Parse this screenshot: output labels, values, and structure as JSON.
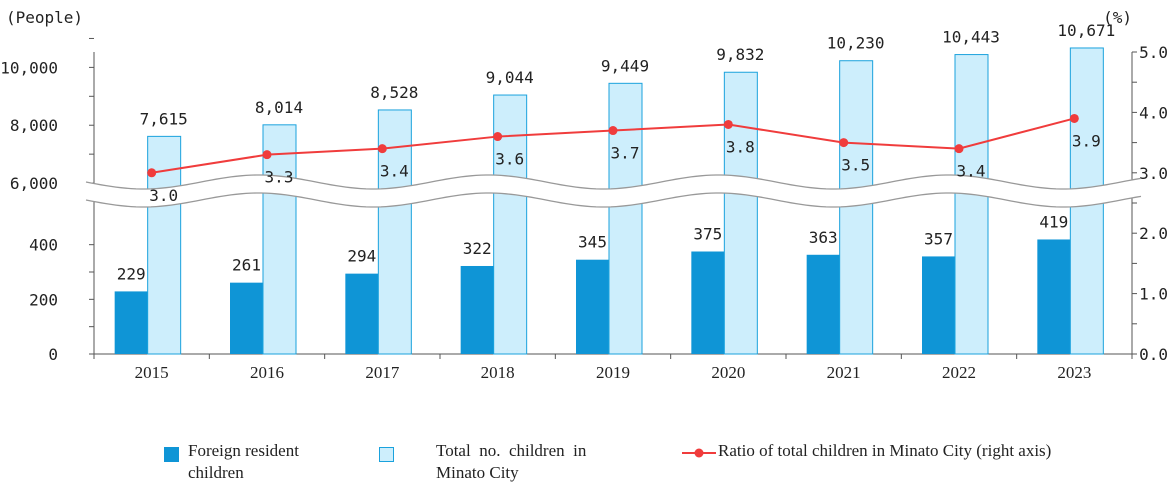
{
  "chart_data": {
    "type": "bar",
    "left_axis_unit": "(People)",
    "right_axis_unit": "(%)",
    "categories": [
      "2015",
      "2016",
      "2017",
      "2018",
      "2019",
      "2020",
      "2021",
      "2022",
      "2023"
    ],
    "left_axis_ticks_lower": [
      "0",
      "200",
      "400"
    ],
    "left_axis_ticks_upper": [
      "6,000",
      "8,000",
      "10,000"
    ],
    "right_axis_ticks": [
      "0.0",
      "1.0",
      "2.0",
      "3.0",
      "4.0",
      "5.0"
    ],
    "series": [
      {
        "name": "Foreign resident children",
        "type": "bar",
        "color": "#0f95d6",
        "values": [
          229,
          261,
          294,
          322,
          345,
          375,
          363,
          357,
          419
        ],
        "labels": [
          "229",
          "261",
          "294",
          "322",
          "345",
          "375",
          "363",
          "357",
          "419"
        ]
      },
      {
        "name": "Total no. children in Minato City",
        "type": "bar",
        "color": "#cdeefc",
        "values": [
          7615,
          8014,
          8528,
          9044,
          9449,
          9832,
          10230,
          10443,
          10671
        ],
        "labels": [
          "7,615",
          "8,014",
          "8,528",
          "9,044",
          "9,449",
          "9,832",
          "10,230",
          "10,443",
          "10,671"
        ]
      },
      {
        "name": "Ratio of total children in Minato City (right axis)",
        "type": "line",
        "color": "#f03c3c",
        "values": [
          3.0,
          3.3,
          3.4,
          3.6,
          3.7,
          3.8,
          3.5,
          3.4,
          3.9
        ],
        "labels": [
          "3.0",
          "3.3",
          "3.4",
          "3.6",
          "3.7",
          "3.8",
          "3.5",
          "3.4",
          "3.9"
        ]
      }
    ],
    "legend": {
      "position": "bottom",
      "item1_line1": "Foreign resident",
      "item1_line2": "children",
      "item2_line1": "Total  no.  children  in",
      "item2_line2": "Minato City",
      "item3": "Ratio of total children in Minato City (right axis)"
    },
    "axis_break": true,
    "grid": false
  }
}
